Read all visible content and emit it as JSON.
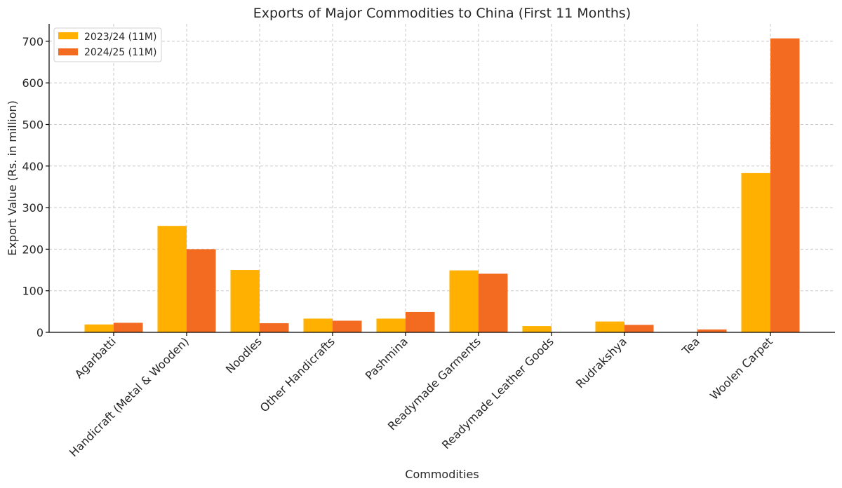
{
  "chart_data": {
    "type": "bar",
    "title": "Exports of Major Commodities to China (First 11 Months)",
    "xlabel": "Commodities",
    "ylabel": "Export Value (Rs. in million)",
    "categories": [
      "Agarbatti",
      "Handicraft (Metal & Wooden)",
      "Noodles",
      "Other Handicrafts",
      "Pashmina",
      "Readymade Garments",
      "Readymade Leather Goods",
      "Rudrakshya",
      "Tea",
      "Woolen Carpet"
    ],
    "series": [
      {
        "name": "2023/24 (11M)",
        "color": "#FFB000",
        "values": [
          19,
          256,
          150,
          33,
          33,
          149,
          15,
          26,
          0,
          383
        ]
      },
      {
        "name": "2024/25 (11M)",
        "color": "#F26B21",
        "values": [
          23,
          200,
          22,
          28,
          49,
          141,
          0,
          18,
          7,
          707
        ]
      }
    ],
    "ylim": [
      0,
      742
    ],
    "yticks": [
      0,
      100,
      200,
      300,
      400,
      500,
      600,
      700
    ],
    "grid": true,
    "legend_position": "top-left"
  }
}
